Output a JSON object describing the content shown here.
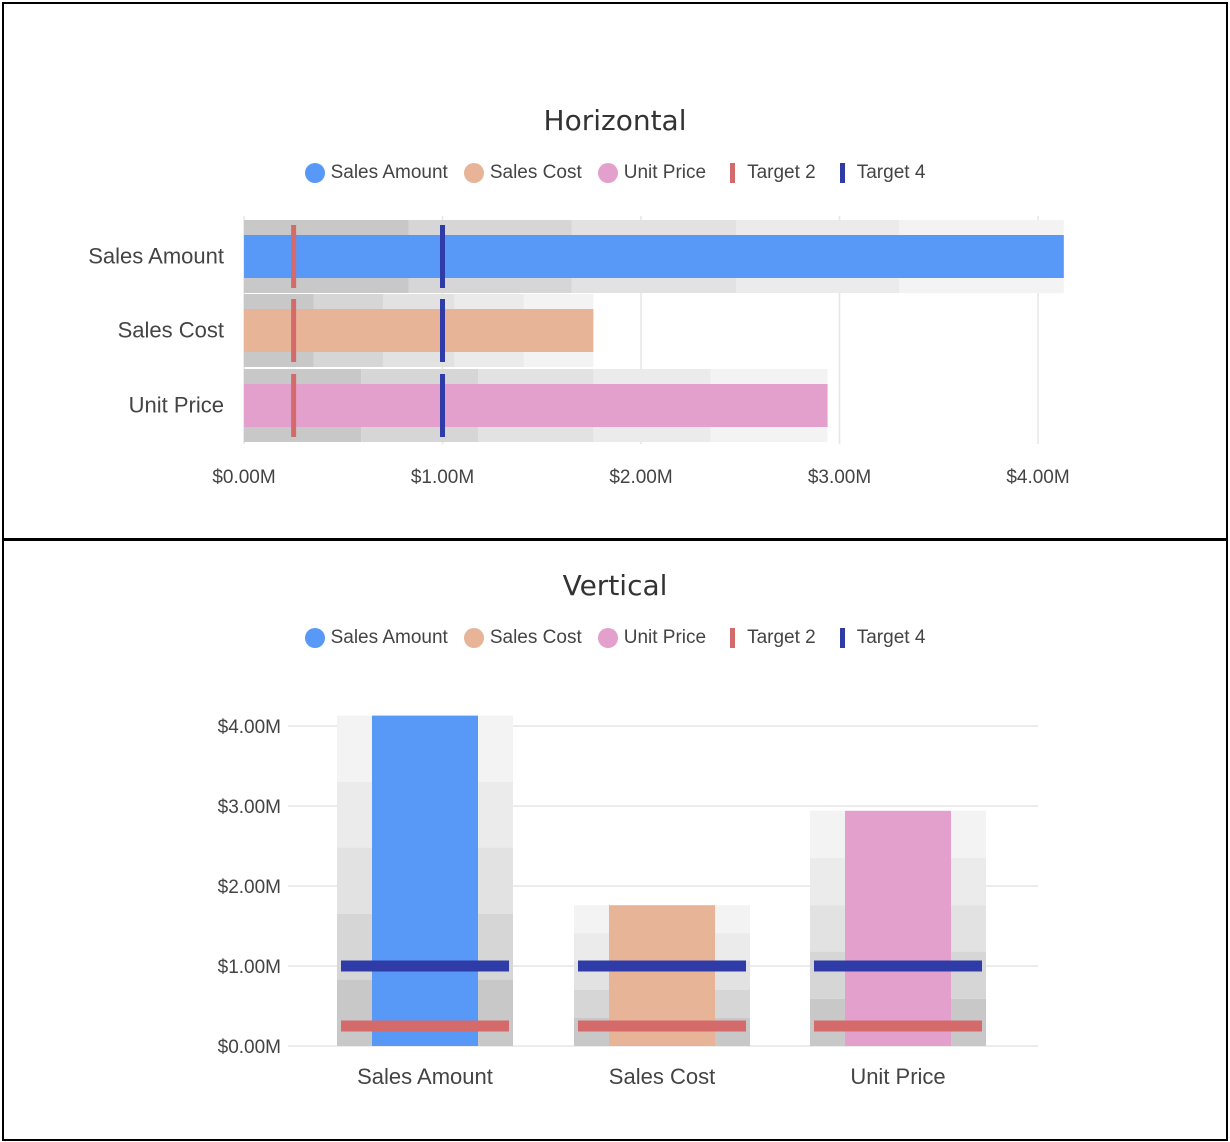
{
  "chart_data": [
    {
      "type": "bar",
      "orientation": "horizontal",
      "title": "Horizontal",
      "categories": [
        "Sales Amount",
        "Sales Cost",
        "Unit Price"
      ],
      "series": [
        {
          "name": "Sales Amount",
          "color": "#5899f7",
          "values": [
            4.13,
            null,
            null
          ]
        },
        {
          "name": "Sales Cost",
          "color": "#e8b498",
          "values": [
            null,
            1.76,
            null
          ]
        },
        {
          "name": "Unit Price",
          "color": "#e3a0cd",
          "values": [
            null,
            null,
            2.94
          ]
        }
      ],
      "targets": [
        {
          "name": "Target 2",
          "color": "#d46a6a",
          "values": [
            0.25,
            0.25,
            0.25
          ]
        },
        {
          "name": "Target 4",
          "color": "#2f3ca8",
          "values": [
            1.0,
            1.0,
            1.0
          ]
        }
      ],
      "ranges": [
        [
          0.83,
          1.65,
          2.48,
          3.3,
          4.13
        ],
        [
          0.35,
          0.7,
          1.06,
          1.41,
          1.76
        ],
        [
          0.59,
          1.18,
          1.76,
          2.35,
          2.94
        ]
      ],
      "range_colors": [
        "#c8c8c8",
        "#d6d6d6",
        "#e2e2e2",
        "#ebebeb",
        "#f3f3f3"
      ],
      "xlim": [
        0,
        4.3
      ],
      "ticks": [
        0,
        1,
        2,
        3,
        4
      ],
      "tick_labels": [
        "$0.00M",
        "$1.00M",
        "$2.00M",
        "$3.00M",
        "$4.00M"
      ],
      "grid": true,
      "legend": "top-center"
    },
    {
      "type": "bar",
      "orientation": "vertical",
      "title": "Vertical",
      "categories": [
        "Sales Amount",
        "Sales Cost",
        "Unit Price"
      ],
      "series": [
        {
          "name": "Sales Amount",
          "color": "#5899f7",
          "values": [
            4.13,
            null,
            null
          ]
        },
        {
          "name": "Sales Cost",
          "color": "#e8b498",
          "values": [
            null,
            1.76,
            null
          ]
        },
        {
          "name": "Unit Price",
          "color": "#e3a0cd",
          "values": [
            null,
            null,
            2.94
          ]
        }
      ],
      "targets": [
        {
          "name": "Target 2",
          "color": "#d46a6a",
          "values": [
            0.25,
            0.25,
            0.25
          ]
        },
        {
          "name": "Target 4",
          "color": "#2f3ca8",
          "values": [
            1.0,
            1.0,
            1.0
          ]
        }
      ],
      "ranges": [
        [
          0.83,
          1.65,
          2.48,
          3.3,
          4.13
        ],
        [
          0.35,
          0.7,
          1.06,
          1.41,
          1.76
        ],
        [
          0.59,
          1.18,
          1.76,
          2.35,
          2.94
        ]
      ],
      "range_colors": [
        "#c8c8c8",
        "#d6d6d6",
        "#e2e2e2",
        "#ebebeb",
        "#f3f3f3"
      ],
      "ylim": [
        0,
        4.3
      ],
      "ticks": [
        0,
        1,
        2,
        3,
        4
      ],
      "tick_labels": [
        "$0.00M",
        "$1.00M",
        "$2.00M",
        "$3.00M",
        "$4.00M"
      ],
      "grid": true,
      "legend": "top-center"
    }
  ]
}
